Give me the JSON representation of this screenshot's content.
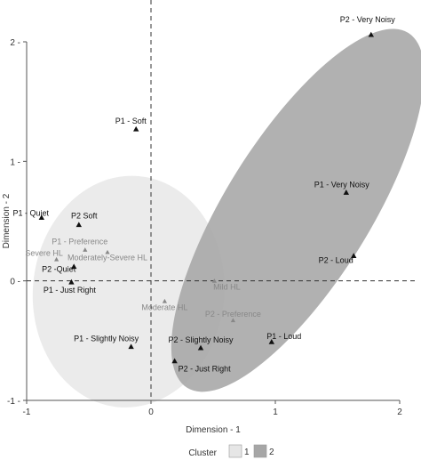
{
  "chart_data": {
    "type": "scatter",
    "title": "",
    "xlabel": "Dimension - 1",
    "ylabel": "Dimension - 2",
    "xlim": [
      -1.0,
      2.0
    ],
    "ylim": [
      -1.0,
      2.0
    ],
    "x_ticks": [
      "-1",
      "0",
      "1",
      "2"
    ],
    "y_ticks": [
      "-1",
      "0",
      "1",
      "2"
    ],
    "reference_lines": {
      "x": 0,
      "y": 0,
      "style": "dashed"
    },
    "grid": false,
    "legend": {
      "title": "Cluster",
      "placement": "bottom-center",
      "entries": [
        {
          "name": "1",
          "color": "#e6e6e6"
        },
        {
          "name": "2",
          "color": "#a6a6a6"
        }
      ]
    },
    "clusters": [
      {
        "name": "1",
        "fill": "#e8e8e8",
        "shape": "ellipse",
        "center": [
          -0.18,
          -0.09
        ],
        "rx": 0.77,
        "ry": 0.97,
        "rotate_deg": 5
      },
      {
        "name": "2",
        "fill": "#a8a8a8",
        "shape": "ellipse",
        "center": [
          1.18,
          0.59
        ],
        "rx": 0.58,
        "ry": 1.75,
        "rotate_deg": 32
      }
    ],
    "points": [
      {
        "label": "P2 - Very Noisy",
        "x": 1.77,
        "y": 2.06,
        "emphasis": "dark"
      },
      {
        "label": "P1 - Soft",
        "x": -0.12,
        "y": 1.27,
        "emphasis": "dark"
      },
      {
        "label": "P1 - Very Noisy",
        "x": 1.57,
        "y": 0.74,
        "emphasis": "dark"
      },
      {
        "label": "P1 - Quiet",
        "x": -0.88,
        "y": 0.53,
        "emphasis": "dark"
      },
      {
        "label": "P2 Soft",
        "x": -0.58,
        "y": 0.47,
        "emphasis": "dark"
      },
      {
        "label": "P1 - Preference",
        "x": -0.53,
        "y": 0.26,
        "emphasis": "light"
      },
      {
        "label": "Severe HL",
        "x": -0.76,
        "y": 0.18,
        "emphasis": "light"
      },
      {
        "label": "Moderately-Severe HL",
        "x": -0.35,
        "y": 0.24,
        "emphasis": "light"
      },
      {
        "label": "P2 - Loud",
        "x": 1.63,
        "y": 0.21,
        "emphasis": "dark"
      },
      {
        "label": "P2 -Quiet",
        "x": -0.62,
        "y": 0.12,
        "emphasis": "dark"
      },
      {
        "label": "P1 - Just Right",
        "x": -0.64,
        "y": -0.01,
        "emphasis": "dark"
      },
      {
        "label": "Mild HL",
        "x": 0.51,
        "y": 0.0,
        "emphasis": "light"
      },
      {
        "label": "Moderate HL",
        "x": 0.11,
        "y": -0.17,
        "emphasis": "light"
      },
      {
        "label": "P2 - Preference",
        "x": 0.66,
        "y": -0.33,
        "emphasis": "light"
      },
      {
        "label": "P1 - Loud",
        "x": 0.97,
        "y": -0.51,
        "emphasis": "dark"
      },
      {
        "label": "P1 - Slightly Noisy",
        "x": -0.16,
        "y": -0.55,
        "emphasis": "dark"
      },
      {
        "label": "P2 - Slightly Noisy",
        "x": 0.4,
        "y": -0.56,
        "emphasis": "dark"
      },
      {
        "label": "P2 - Just Right",
        "x": 0.19,
        "y": -0.67,
        "emphasis": "dark"
      }
    ]
  }
}
